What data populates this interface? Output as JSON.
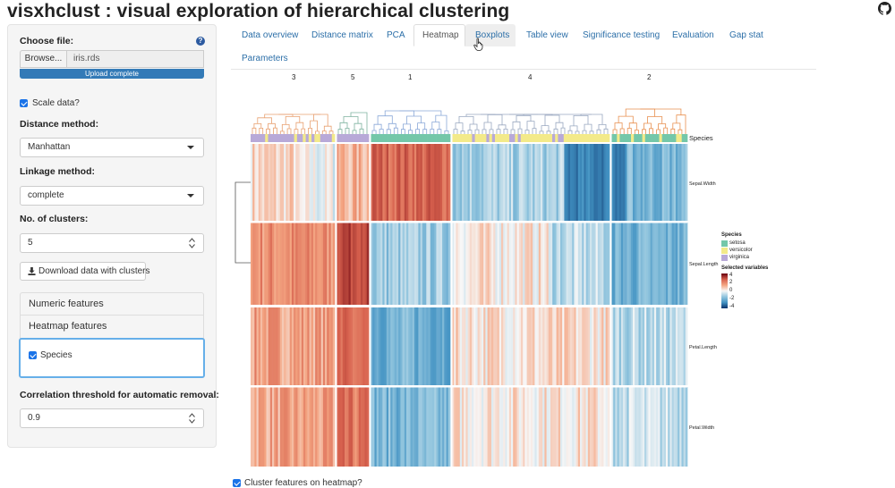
{
  "app": {
    "title": "visxhclust : visual exploration of hierarchical clustering"
  },
  "sidebar": {
    "choose_file_label": "Choose file:",
    "help_glyph": "?",
    "browse_label": "Browse...",
    "file_name": "iris.rds",
    "upload_status": "Upload complete",
    "scale_label": "Scale data?",
    "distance_label": "Distance method:",
    "distance_value": "Manhattan",
    "linkage_label": "Linkage method:",
    "linkage_value": "complete",
    "clusters_label": "No. of clusters:",
    "clusters_value": "5",
    "download_label": "Download data with clusters",
    "numeric_features_label": "Numeric features",
    "heatmap_features_label": "Heatmap features",
    "species_feature_label": "Species",
    "correlation_label": "Correlation threshold for automatic removal:",
    "correlation_value": "0.9"
  },
  "tabs": [
    {
      "label": "Data overview"
    },
    {
      "label": "Distance matrix"
    },
    {
      "label": "PCA"
    },
    {
      "label": "Heatmap",
      "active": true
    },
    {
      "label": "Boxplots"
    },
    {
      "label": "Table view"
    },
    {
      "label": "Significance testing"
    },
    {
      "label": "Evaluation"
    },
    {
      "label": "Gap stat"
    },
    {
      "label": "Parameters"
    }
  ],
  "heatmap": {
    "cluster_labels": [
      "3",
      "5",
      "1",
      "4",
      "2"
    ],
    "row_labels": [
      "Sepal.Width",
      "Sepal.Length",
      "Petal.Length",
      "Petal.Width"
    ],
    "species_annotation_label": "Species",
    "legend": {
      "species_title": "Species",
      "species": [
        {
          "name": "setosa",
          "color": "#74c7a9"
        },
        {
          "name": "versicolor",
          "color": "#f3ea8a"
        },
        {
          "name": "virginica",
          "color": "#b8a9d8"
        }
      ],
      "variables_title": "Selected variables",
      "scale_labels": [
        "4",
        "2",
        "0",
        "-2",
        "-4"
      ]
    },
    "colors": {
      "dendrogram": [
        "#e8a070",
        "#7fb3a0",
        "#8aa8d8",
        "#9aa8c0",
        "#e89050"
      ]
    }
  },
  "footer": {
    "cluster_features_label": "Cluster features on heatmap?"
  }
}
